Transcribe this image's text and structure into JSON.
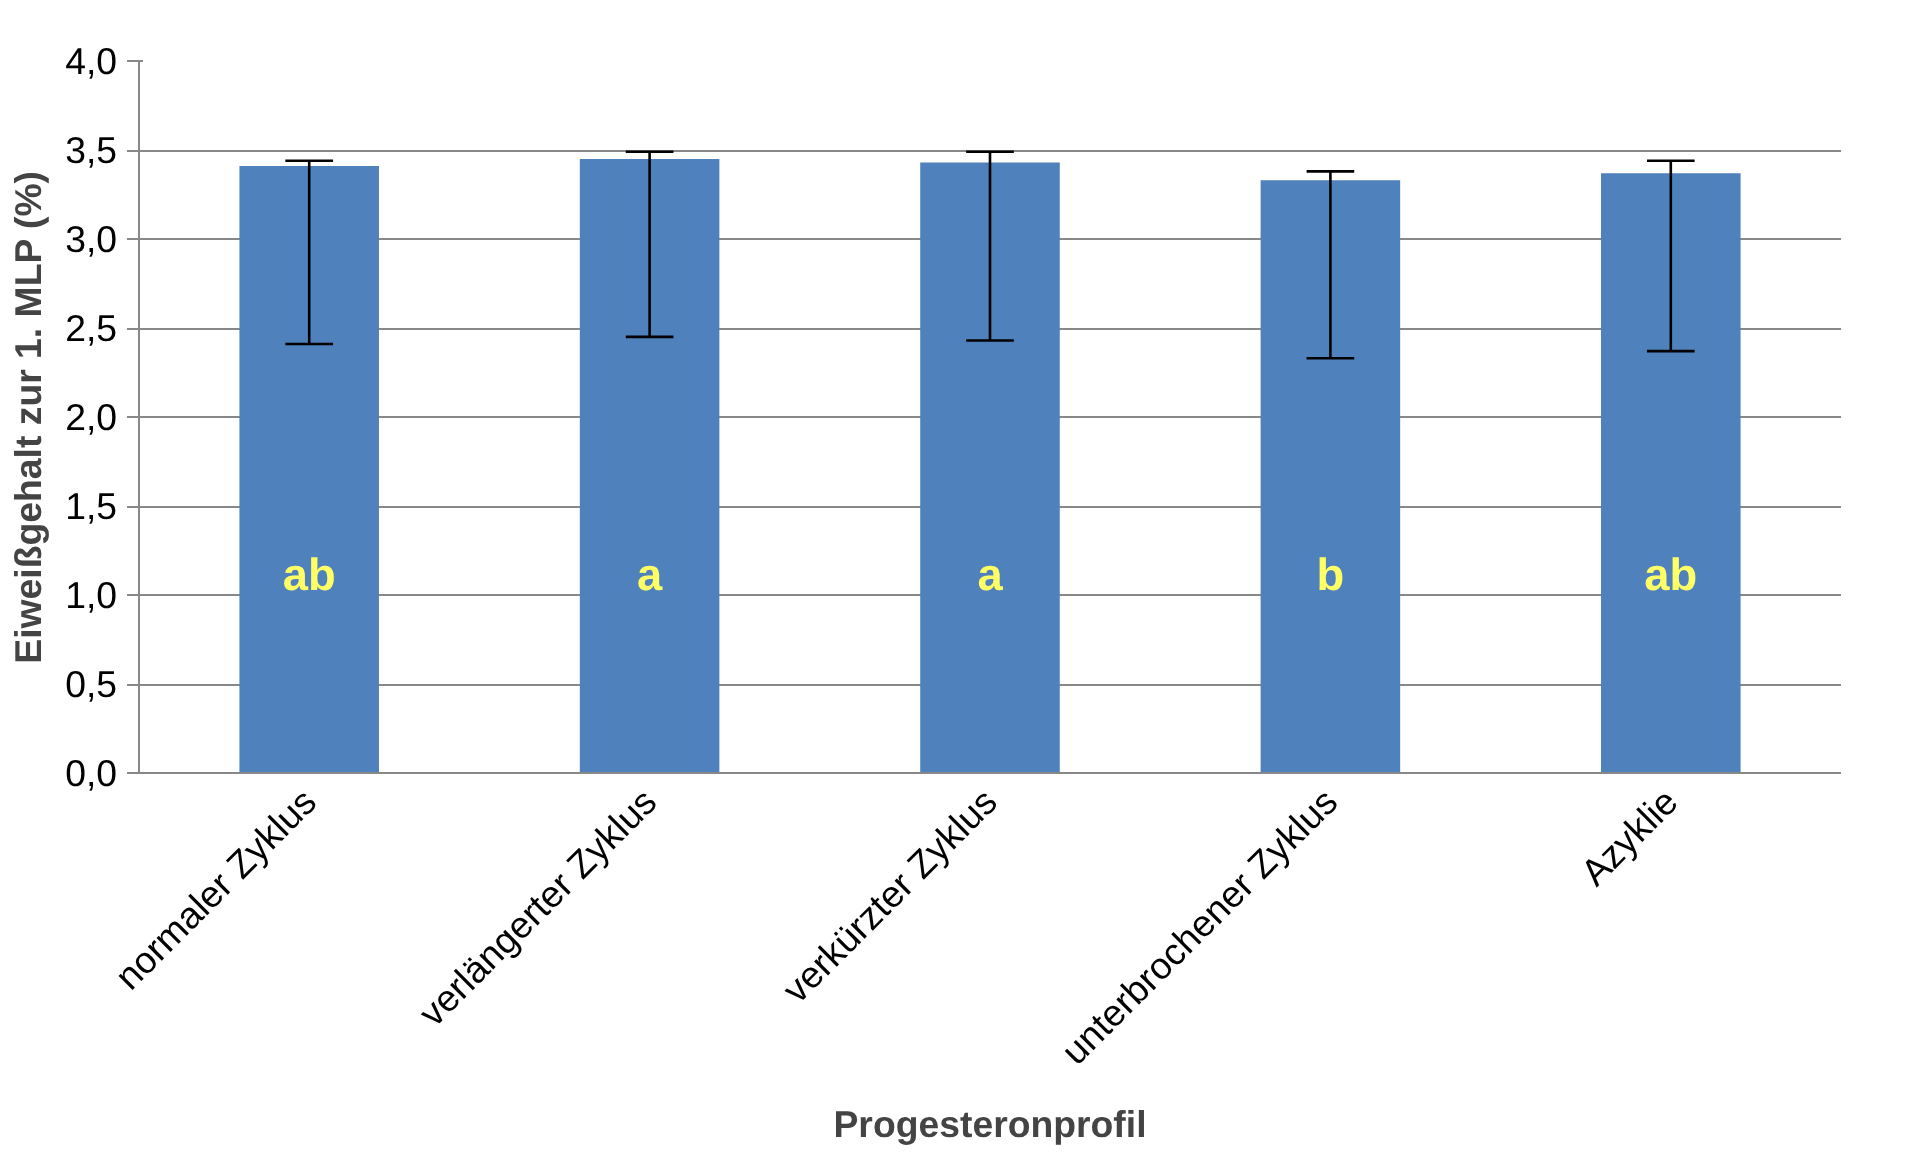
{
  "chart_data": {
    "type": "bar",
    "xlabel": "Progesteronprofil",
    "ylabel": "Eiweißgehalt zur 1. MLP (%)",
    "categories": [
      "normaler Zyklus",
      "verlängerter Zyklus",
      "verkürzter Zyklus",
      "unterbrochener Zyklus",
      "Azyklie"
    ],
    "values": [
      3.41,
      3.45,
      3.43,
      3.33,
      3.37
    ],
    "color": "#4f81bd",
    "errors": [
      [
        2.41,
        3.44
      ],
      [
        2.45,
        3.49
      ],
      [
        2.43,
        3.49
      ],
      [
        2.33,
        3.38
      ],
      [
        2.37,
        3.44
      ]
    ],
    "ylim": [
      0,
      4
    ],
    "yticks": [
      {
        "value": 0,
        "label": "0,0"
      },
      {
        "value": 0.5,
        "label": "0,5"
      },
      {
        "value": 1,
        "label": "1,0"
      },
      {
        "value": 1.5,
        "label": "1,5"
      },
      {
        "value": 2,
        "label": "2,0"
      },
      {
        "value": 2.5,
        "label": "2,5"
      },
      {
        "value": 3,
        "label": "3,0"
      },
      {
        "value": 3.5,
        "label": "3,5"
      },
      {
        "value": 4,
        "label": "4,0"
      }
    ],
    "grid": "y",
    "annotations": [
      "ab",
      "a",
      "a",
      "b",
      "ab"
    ]
  }
}
